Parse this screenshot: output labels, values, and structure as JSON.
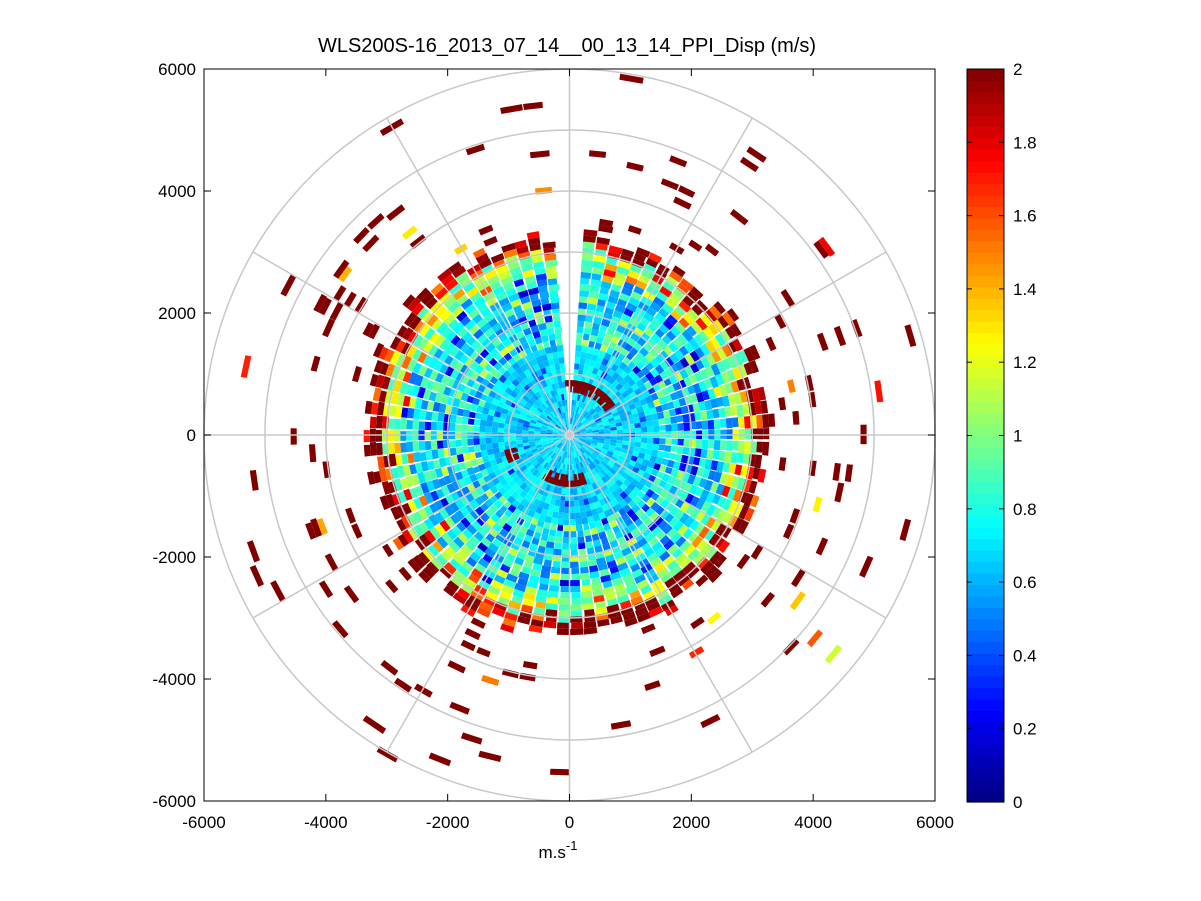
{
  "chart_data": {
    "type": "heatmap",
    "subtype": "polar-ppi",
    "title": "WLS200S-16_2013_07_14__00_13_14_PPI_Disp (m/s)",
    "xlabel": "m.s",
    "xlabel_superscript": "-1",
    "ylabel": "",
    "xlim": [
      -6000,
      6000
    ],
    "ylim": [
      -6000,
      6000
    ],
    "xticks": [
      "-6000",
      "-4000",
      "-2000",
      "0",
      "2000",
      "4000",
      "6000"
    ],
    "yticks": [
      "6000",
      "4000",
      "2000",
      "0",
      "-2000",
      "-4000",
      "-6000"
    ],
    "grid": true,
    "polar_grid": {
      "range_rings_m": [
        1000,
        2000,
        3000,
        4000,
        5000,
        6000
      ],
      "spoke_angles_deg": [
        0,
        30,
        60,
        90,
        120,
        150,
        180,
        210,
        240,
        270,
        300,
        330
      ]
    },
    "scan": {
      "range_gate_m": 100,
      "max_range_m": 6000,
      "azimuth_step_deg": 4,
      "dense_core_radius_m": 3200,
      "blank_sector_deg": [
        -4,
        0
      ],
      "near_field_arcs": [
        {
          "center_deg": 25,
          "range_m": 800,
          "width_deg": 60,
          "value": 2
        },
        {
          "center_deg": 185,
          "range_m": 750,
          "width_deg": 50,
          "value": 2
        },
        {
          "center_deg": 250,
          "range_m": 1000,
          "width_deg": 10,
          "value": 2
        }
      ]
    },
    "colorbar": {
      "colormap": "jet",
      "min": 0,
      "max": 2,
      "ticks": [
        "2",
        "1.8",
        "1.6",
        "1.4",
        "1.2",
        "1",
        "0.8",
        "0.6",
        "0.4",
        "0.2",
        "0"
      ]
    }
  },
  "colors": {
    "grid": "#c8c8c8",
    "axis": "#000000",
    "background": "#ffffff"
  }
}
